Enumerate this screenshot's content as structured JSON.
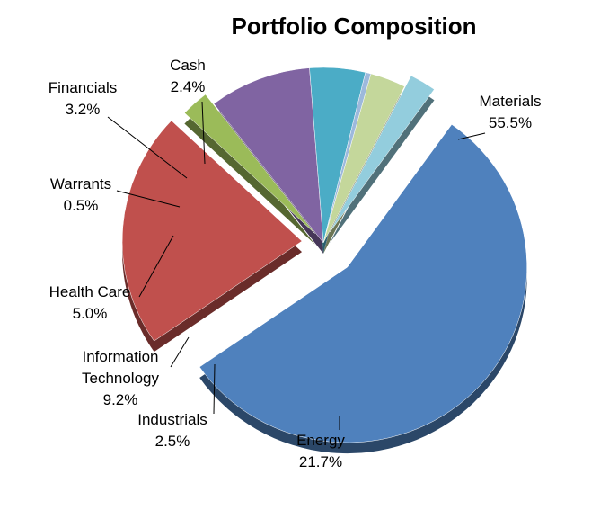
{
  "chart_data": {
    "type": "pie",
    "title": "Portfolio Composition",
    "slices": [
      {
        "label": "Materials",
        "value": 55.5,
        "display": "55.5%",
        "color": "#4F81BD",
        "exploded": true
      },
      {
        "label": "Energy",
        "value": 21.7,
        "display": "21.7%",
        "color": "#C0504D",
        "exploded": true
      },
      {
        "label": "Industrials",
        "value": 2.5,
        "display": "2.5%",
        "color": "#9BBB59",
        "exploded": true
      },
      {
        "label": "Information Technology",
        "label_lines": [
          "Information",
          "Technology"
        ],
        "value": 9.2,
        "display": "9.2%",
        "color": "#8064A2",
        "exploded": false
      },
      {
        "label": "Health Care",
        "value": 5.0,
        "display": "5.0%",
        "color": "#4BACC6",
        "exploded": false
      },
      {
        "label": "Warrants",
        "value": 0.5,
        "display": "0.5%",
        "color": "#9DB9DC",
        "exploded": false
      },
      {
        "label": "Financials",
        "value": 3.2,
        "display": "3.2%",
        "color": "#C4D79B",
        "exploded": false
      },
      {
        "label": "Cash",
        "value": 2.4,
        "display": "2.4%",
        "color": "#93CDDD",
        "exploded": true
      }
    ],
    "start_angle_deg": 0,
    "direction": "clockwise",
    "legend": "none",
    "data_labels": "category-and-percent"
  }
}
